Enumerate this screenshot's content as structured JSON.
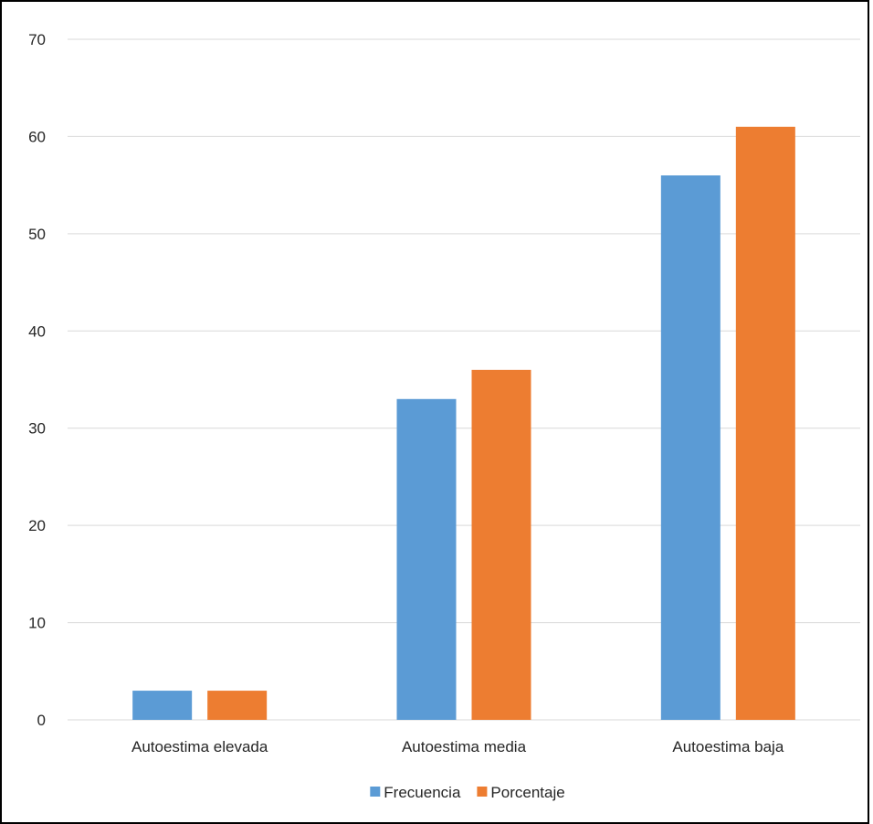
{
  "chart_data": {
    "type": "bar",
    "categories": [
      "Autoestima elevada",
      "Autoestima media",
      "Autoestima baja"
    ],
    "series": [
      {
        "name": "Frecuencia",
        "values": [
          3,
          33,
          56
        ],
        "color": "#5B9BD5"
      },
      {
        "name": "Porcentaje",
        "values": [
          3,
          36,
          61
        ],
        "color": "#ED7D31"
      }
    ],
    "yticks": [
      0,
      10,
      20,
      30,
      40,
      50,
      60,
      70
    ],
    "ylim": [
      0,
      70
    ],
    "grid": true,
    "gridColor": "#D9D9D9",
    "legend": "bottom"
  }
}
